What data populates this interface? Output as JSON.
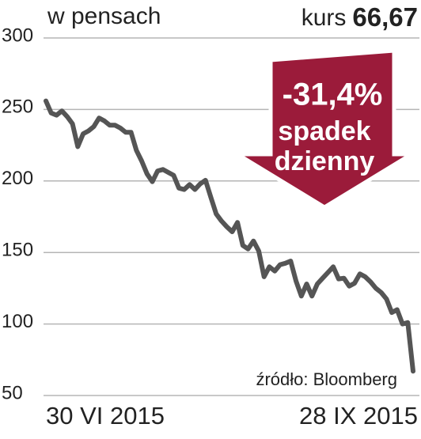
{
  "chart_data": {
    "type": "line",
    "y_label": "w pensach",
    "price_label": "kurs",
    "price": "66,67",
    "annotation": {
      "change": "-31,4%",
      "lines": [
        "spadek",
        "dzienny"
      ]
    },
    "source": "źródło: Bloomberg",
    "categories": [
      "30 VI 2015",
      null,
      null,
      null,
      null,
      null,
      null,
      null,
      null,
      null,
      null,
      null,
      null,
      null,
      null,
      null,
      null,
      null,
      null,
      null,
      null,
      null,
      null,
      null,
      null,
      null,
      null,
      null,
      null,
      null,
      null,
      null,
      null,
      null,
      null,
      null,
      null,
      null,
      null,
      null,
      null,
      null,
      null,
      null,
      null,
      null,
      null,
      null,
      null,
      null,
      null,
      null,
      null,
      null,
      null,
      null,
      null,
      null,
      null,
      null,
      null,
      null,
      null,
      null,
      null,
      null,
      null,
      null,
      null,
      "28 IX 2015"
    ],
    "values": [
      256,
      247.5,
      246,
      249,
      245,
      240,
      224,
      233,
      235,
      238,
      244,
      242,
      239,
      239,
      237,
      234,
      234,
      221.5,
      214,
      205,
      199.5,
      207,
      208,
      206,
      204,
      195,
      194,
      197.5,
      194,
      198,
      200.5,
      188.5,
      177,
      172,
      168,
      164.5,
      171,
      155,
      152.5,
      158,
      151,
      133,
      140,
      137,
      141.5,
      142.5,
      144,
      130,
      119.5,
      128,
      119.5,
      128,
      132,
      136,
      140,
      131.5,
      132,
      126.5,
      128.5,
      135,
      133,
      129.5,
      125,
      122,
      117.5,
      108,
      110,
      100,
      101,
      67
    ],
    "color": "#555555",
    "ylim": [
      50,
      300
    ],
    "yticks": [
      50,
      100,
      150,
      200,
      250,
      300
    ],
    "grid": true
  }
}
